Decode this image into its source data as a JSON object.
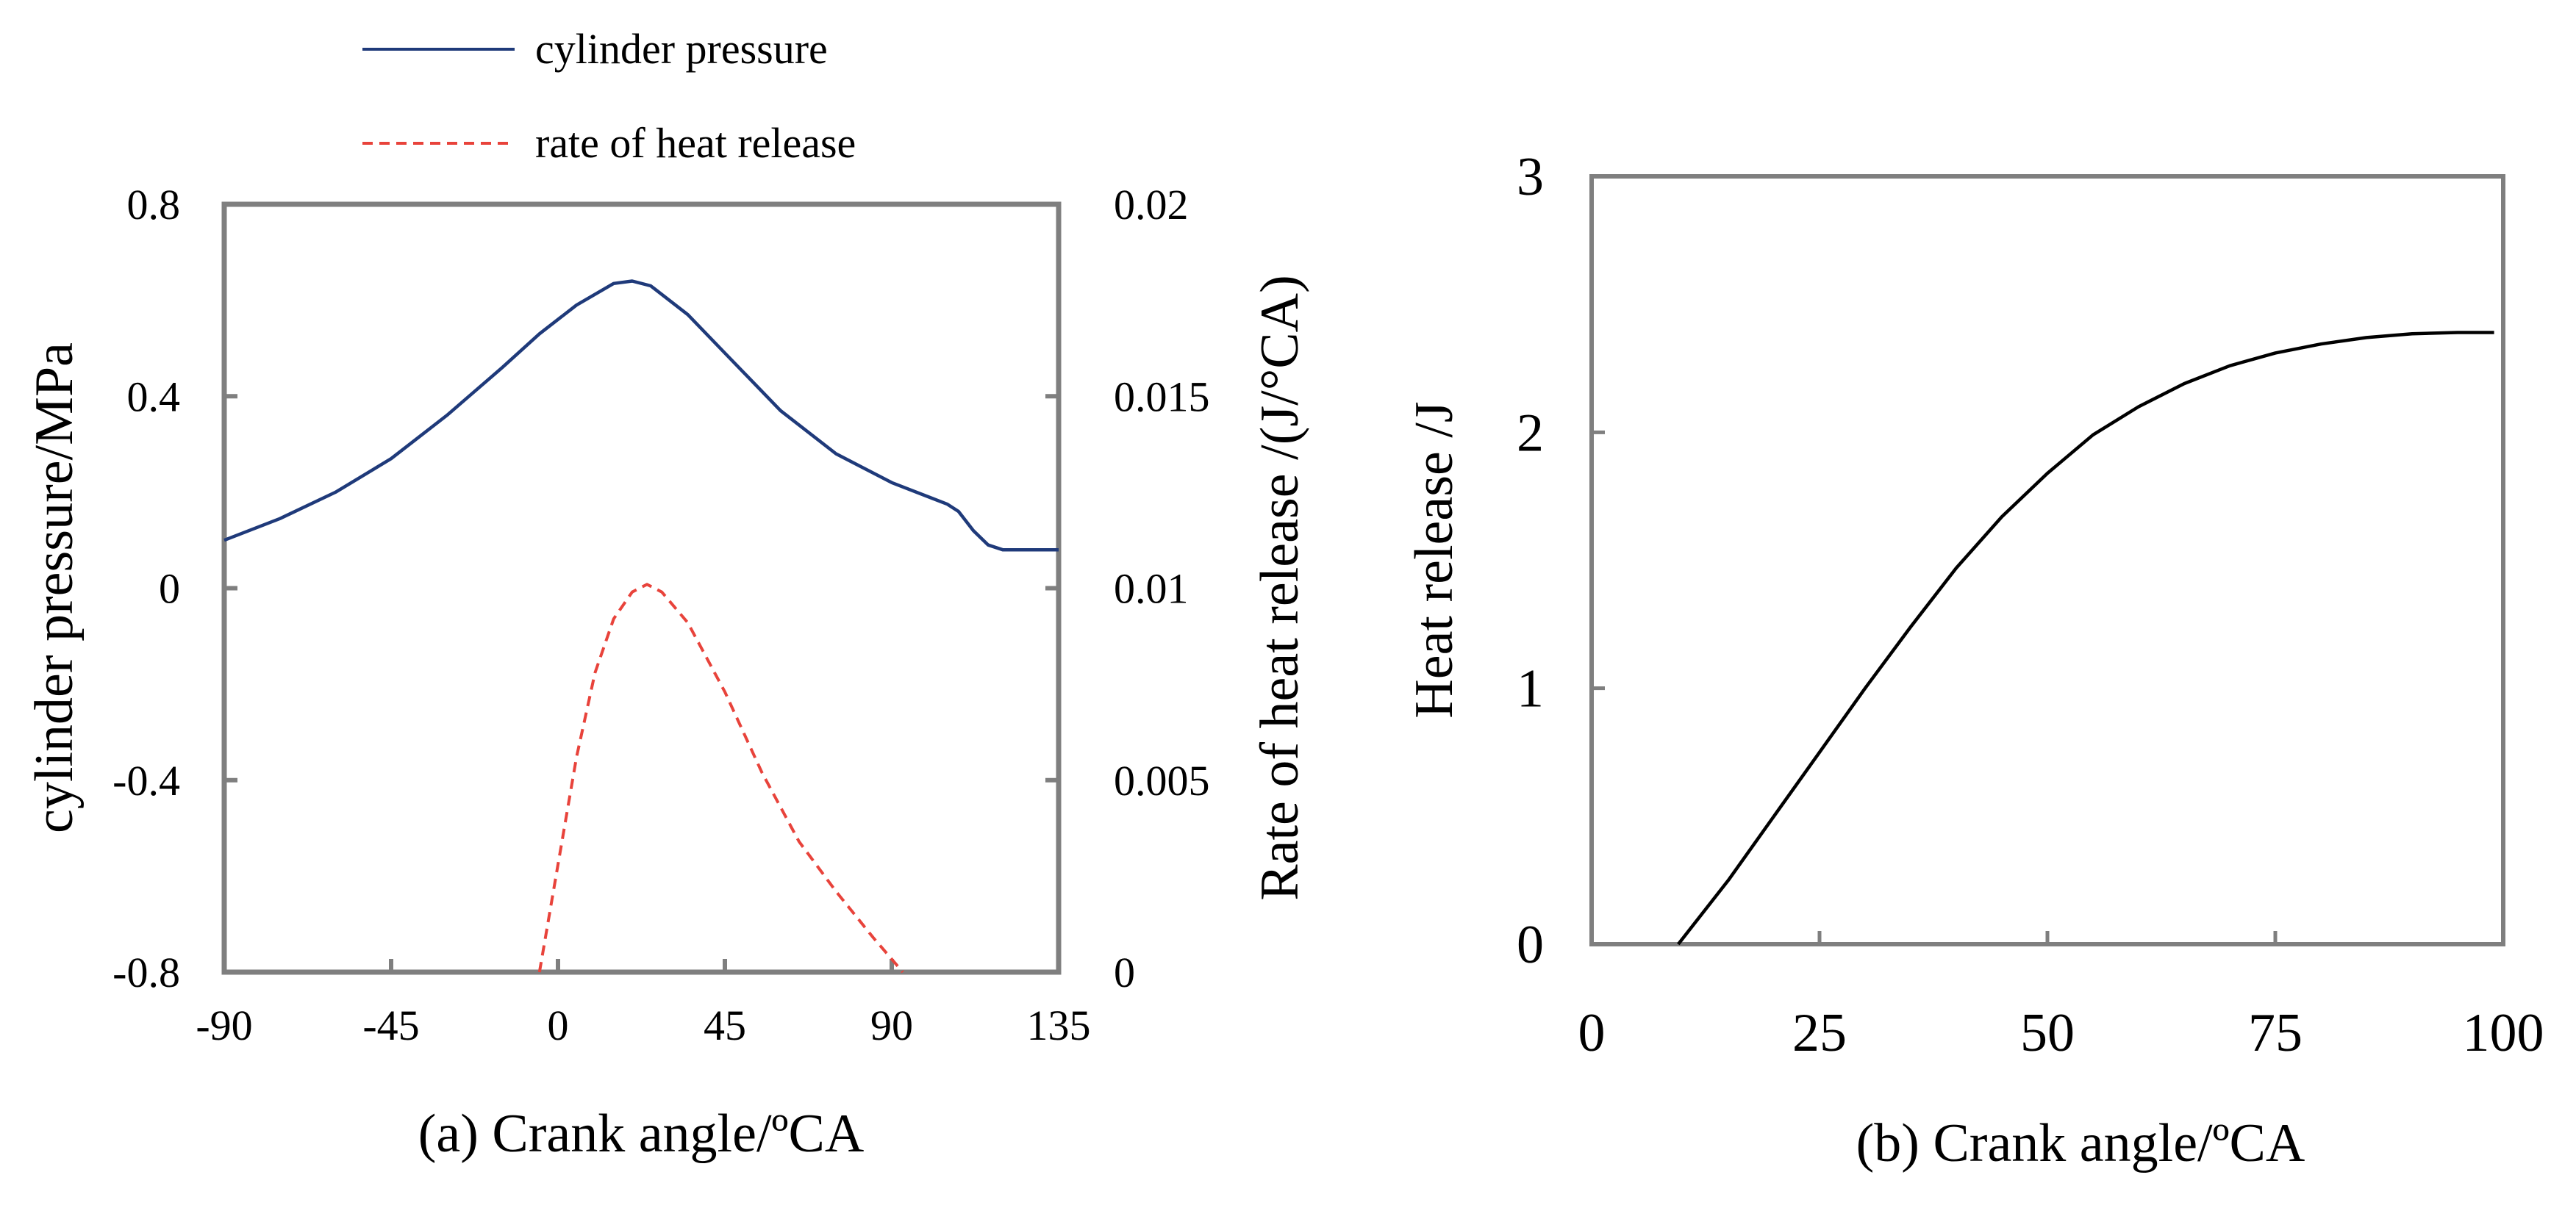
{
  "colors": {
    "pressure": "#1f3a7a",
    "heat_rate": "#e8433b",
    "heat_release": "#000000",
    "axis": "#7f7f7f"
  },
  "chart_data": [
    {
      "id": "a",
      "type": "line",
      "xlabel": "(a) Crank angle/ºCA",
      "ylabel": "cylinder pressure/MPa",
      "y2label": "Rate of heat release /(J/°CA)",
      "xlim": [
        -90,
        135
      ],
      "ylim": [
        -0.8,
        0.8
      ],
      "y2lim": [
        0,
        0.02
      ],
      "xticks": [
        -90,
        -45,
        0,
        45,
        90,
        135
      ],
      "xtick_labels": [
        "-90",
        "-45",
        "0",
        "45",
        "90",
        "135"
      ],
      "yticks": [
        -0.8,
        -0.4,
        0,
        0.4,
        0.8
      ],
      "ytick_labels": [
        "-0.8",
        "-0.4",
        "0",
        "0.4",
        "0.8"
      ],
      "y2ticks": [
        0,
        0.005,
        0.01,
        0.015,
        0.02
      ],
      "y2tick_labels": [
        "0",
        "0.005",
        "0.01",
        "0.015",
        "0.02"
      ],
      "legend": [
        "cylinder pressure",
        "rate of heat release"
      ],
      "legend_position": "top",
      "series": [
        {
          "name": "cylinder pressure",
          "axis": "left",
          "style": "solid",
          "x": [
            -90,
            -75,
            -60,
            -45,
            -30,
            -15,
            -5,
            5,
            15,
            20,
            25,
            35,
            45,
            60,
            75,
            90,
            100,
            105,
            108,
            112,
            116,
            120,
            125,
            130,
            135
          ],
          "y": [
            0.1,
            0.145,
            0.2,
            0.27,
            0.36,
            0.46,
            0.53,
            0.59,
            0.635,
            0.64,
            0.63,
            0.57,
            0.49,
            0.37,
            0.28,
            0.22,
            0.19,
            0.175,
            0.16,
            0.12,
            0.09,
            0.08,
            0.08,
            0.08,
            0.08
          ]
        },
        {
          "name": "rate of heat release",
          "axis": "right",
          "style": "dashed",
          "x": [
            -5,
            0,
            5,
            10,
            15,
            20,
            24,
            28,
            35,
            45,
            55,
            65,
            75,
            85,
            93
          ],
          "y": [
            0,
            0.0028,
            0.0056,
            0.0078,
            0.0092,
            0.0099,
            0.0101,
            0.0099,
            0.0091,
            0.0073,
            0.0052,
            0.0034,
            0.0021,
            0.0009,
            0
          ]
        }
      ]
    },
    {
      "id": "b",
      "type": "line",
      "xlabel": "(b) Crank angle/ºCA",
      "ylabel": "Heat release /J",
      "xlim": [
        0,
        100
      ],
      "ylim": [
        0,
        3
      ],
      "xticks": [
        0,
        25,
        50,
        75,
        100
      ],
      "xtick_labels": [
        "0",
        "25",
        "50",
        "75",
        "100"
      ],
      "yticks": [
        0,
        1,
        2,
        3
      ],
      "ytick_labels": [
        "0",
        "1",
        "2",
        "3"
      ],
      "series": [
        {
          "name": "heat release",
          "style": "solid",
          "x": [
            9.5,
            15,
            20,
            25,
            30,
            35,
            40,
            45,
            50,
            55,
            60,
            65,
            70,
            75,
            80,
            85,
            90,
            95,
            99
          ],
          "y": [
            0,
            0.25,
            0.5,
            0.75,
            1.0,
            1.24,
            1.47,
            1.67,
            1.84,
            1.99,
            2.1,
            2.19,
            2.26,
            2.31,
            2.345,
            2.37,
            2.385,
            2.39,
            2.39
          ]
        }
      ]
    }
  ]
}
